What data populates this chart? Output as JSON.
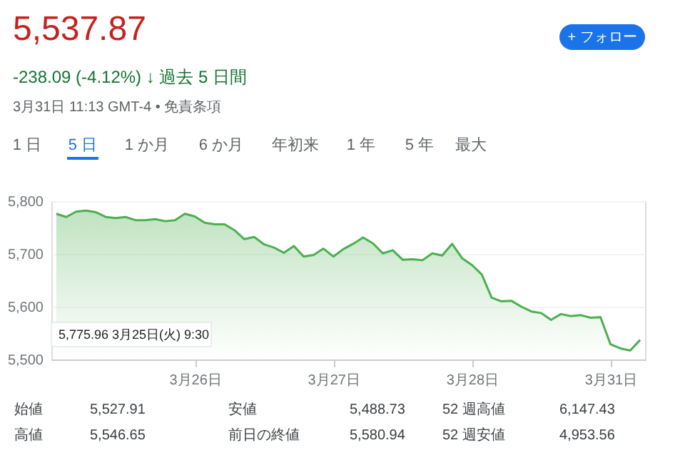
{
  "chart_data": {
    "type": "area",
    "title": "5,537.87",
    "subtitle": "-238.09 (-4.12%) ↓ 過去 5 日間",
    "categories": [
      null,
      null,
      null,
      null,
      null,
      null,
      null,
      null,
      null,
      null,
      null,
      null,
      null,
      null,
      "3月26日",
      null,
      null,
      null,
      null,
      null,
      null,
      null,
      null,
      null,
      null,
      null,
      null,
      null,
      "3月27日",
      null,
      null,
      null,
      null,
      null,
      null,
      null,
      null,
      null,
      null,
      null,
      null,
      null,
      "3月28日",
      null,
      null,
      null,
      null,
      null,
      null,
      null,
      null,
      null,
      null,
      null,
      null,
      null,
      "3月31日",
      null,
      null,
      null
    ],
    "series": [
      {
        "color": "#4caf50",
        "values": [
          5776,
          5770,
          5780,
          5782,
          5779,
          5770,
          5768,
          5770,
          5764,
          5764,
          5766,
          5762,
          5764,
          5776,
          5771,
          5759,
          5756,
          5756,
          5745,
          5728,
          5732,
          5718,
          5712,
          5702,
          5715,
          5695,
          5698,
          5710,
          5695,
          5709,
          5719,
          5731,
          5720,
          5701,
          5707,
          5689,
          5690,
          5688,
          5701,
          5697,
          5719,
          5692,
          5679,
          5661,
          5617,
          5610,
          5611,
          5600,
          5591,
          5588,
          5575,
          5586,
          5582,
          5584,
          5579,
          5580,
          5529,
          5521,
          5517,
          5537
        ]
      }
    ],
    "ylim": [
      5500,
      5800
    ],
    "yticks": [
      {
        "value": 5500,
        "label": "5,500"
      },
      {
        "value": 5600,
        "label": "5,600"
      },
      {
        "value": 5700,
        "label": "5,700"
      },
      {
        "value": 5800,
        "label": "5,800"
      }
    ],
    "grid": "y",
    "annotations": [
      "3月31日 11:13 GMT-4 • 免責条項",
      "+ フォロー",
      "1 日",
      "5 日",
      "1 か月",
      "6 か月",
      "年初来",
      "1 年",
      "5 年",
      "最大",
      "始値",
      "5,527.91",
      "安値",
      "5,488.73",
      "52 週高値",
      "6,147.43",
      "高値",
      "5,546.65",
      "前日の終値",
      "5,580.94",
      "52 週安値",
      "4,953.56",
      "5,775.96 3月25日(火) 9:30"
    ]
  }
}
